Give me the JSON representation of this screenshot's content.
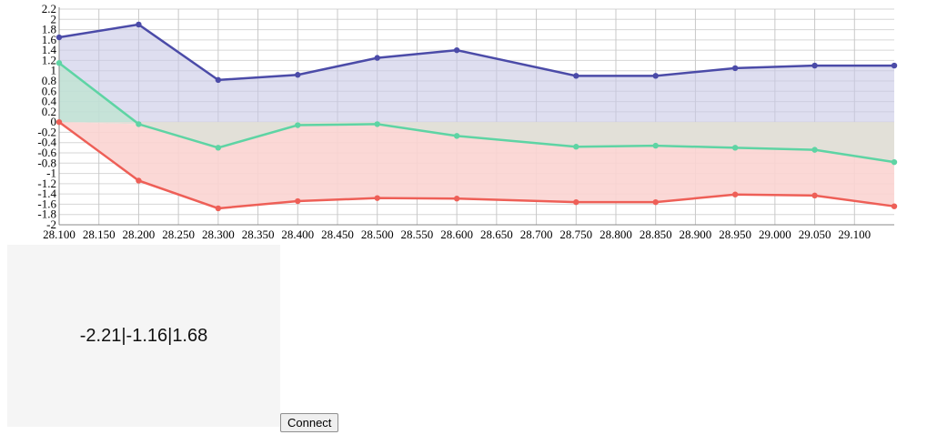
{
  "chart_data": {
    "type": "area",
    "x": [
      28.1,
      28.2,
      28.3,
      28.4,
      28.5,
      28.6,
      28.75,
      28.85,
      28.95,
      29.05,
      29.15
    ],
    "series": [
      {
        "color": "#4b4ba8",
        "fill": "#c8c8e6",
        "values": [
          1.65,
          1.9,
          0.82,
          0.92,
          1.25,
          1.4,
          0.9,
          0.9,
          1.05,
          1.1,
          1.1
        ]
      },
      {
        "color": "#5ed4a4",
        "fill": "#bfe3d2",
        "values": [
          1.15,
          -0.04,
          -0.5,
          -0.06,
          -0.04,
          -0.27,
          -0.48,
          -0.46,
          -0.5,
          -0.54,
          -0.78
        ]
      },
      {
        "color": "#ee5f57",
        "fill": "#fbd4d1",
        "values": [
          0.0,
          -1.14,
          -1.68,
          -1.54,
          -1.48,
          -1.49,
          -1.56,
          -1.56,
          -1.41,
          -1.43,
          -1.64
        ]
      }
    ],
    "negative_fill_between": "#e2e0d8",
    "xlim": [
      28.1,
      29.15
    ],
    "ylim": [
      -2,
      2.2
    ],
    "y_ticks": [
      "2.2",
      "2",
      "1.8",
      "1.6",
      "1.4",
      "1.2",
      "1",
      "0.8",
      "0.6",
      "0.4",
      "0.2",
      "0",
      "-0.2",
      "-0.4",
      "-0.6",
      "-0.8",
      "-1",
      "-1.2",
      "-1.4",
      "-1.6",
      "-1.8",
      "-2"
    ],
    "x_ticks": [
      "28.100",
      "28.150",
      "28.200",
      "28.250",
      "28.300",
      "28.350",
      "28.400",
      "28.450",
      "28.500",
      "28.550",
      "28.600",
      "28.650",
      "28.700",
      "28.750",
      "28.800",
      "28.850",
      "28.900",
      "28.950",
      "29.000",
      "29.050",
      "29.100"
    ],
    "grid": true
  },
  "readout": {
    "value": "-2.21|-1.16|1.68"
  },
  "controls": {
    "connect_label": "Connect"
  }
}
